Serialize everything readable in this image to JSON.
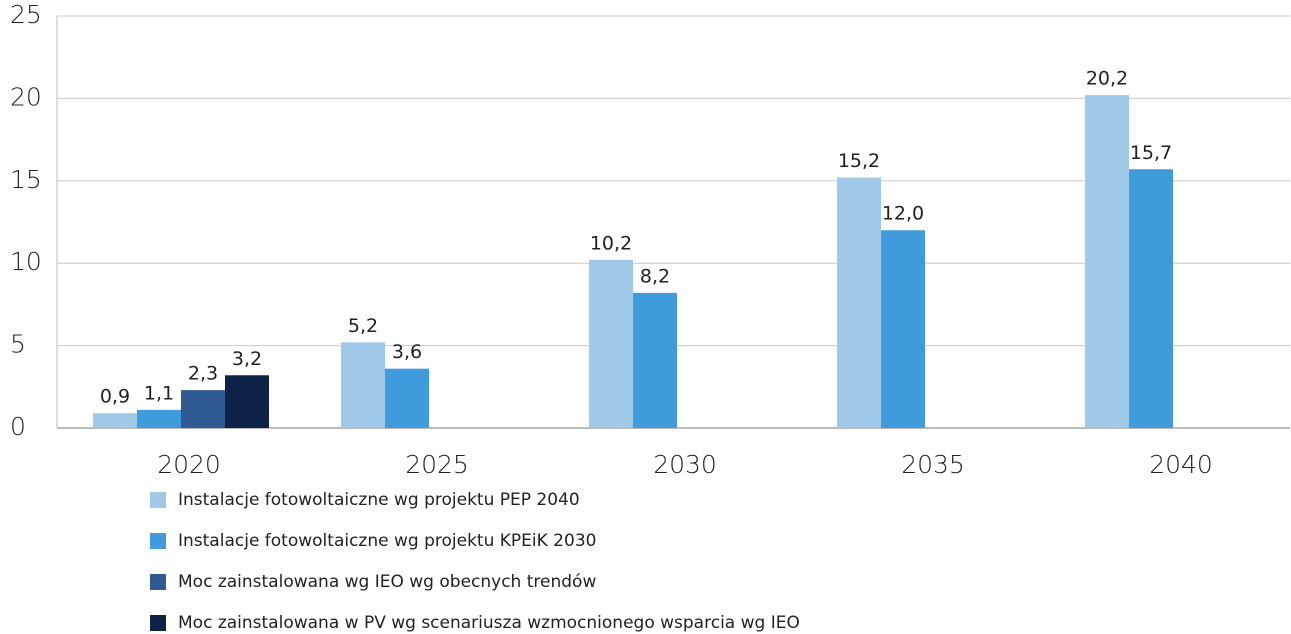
{
  "chart_data": {
    "type": "bar",
    "categories": [
      "2020",
      "2025",
      "2030",
      "2035",
      "2040"
    ],
    "series": [
      {
        "name": "Instalacje fotowoltaiczne wg projektu PEP 2040",
        "color": "#a0c8e8",
        "values": [
          0.9,
          5.2,
          10.2,
          15.2,
          20.2
        ],
        "value_labels": [
          "0,9",
          "5,2",
          "10,2",
          "15,2",
          "20,2"
        ]
      },
      {
        "name": "Instalacje fotowoltaiczne wg projektu KPEiK 2030",
        "color": "#3f9bdc",
        "values": [
          1.1,
          3.6,
          8.2,
          12.0,
          15.7
        ],
        "value_labels": [
          "1,1",
          "3,6",
          "8,2",
          "12,0",
          "15,7"
        ]
      },
      {
        "name": "Moc zainstalowana wg IEO wg obecnych trendów",
        "color": "#2f5a92",
        "values": [
          2.3,
          null,
          null,
          null,
          null
        ],
        "value_labels": [
          "2,3",
          null,
          null,
          null,
          null
        ]
      },
      {
        "name": "Moc zainstalowana w PV wg scenariusza wzmocnionego wsparcia wg IEO",
        "color": "#0e2248",
        "values": [
          3.2,
          null,
          null,
          null,
          null
        ],
        "value_labels": [
          "3,2",
          null,
          null,
          null,
          null
        ]
      }
    ],
    "ylim": [
      0,
      25
    ],
    "yticks": [
      0,
      5,
      10,
      15,
      20,
      25
    ],
    "grid": true,
    "legend": "bottom"
  }
}
